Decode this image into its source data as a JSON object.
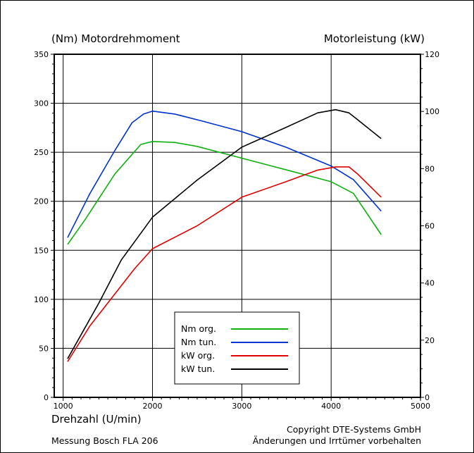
{
  "chart_data": {
    "type": "line",
    "y_left_label": "(Nm)  Motordrehmoment",
    "y_right_label": "Motorleistung  (kW)",
    "x_label": "Drehzahl  (U/min)",
    "x_range": [
      900,
      5000
    ],
    "x_ticks": [
      1000,
      2000,
      3000,
      4000,
      5000
    ],
    "y_left_range": [
      0,
      350
    ],
    "y_left_ticks": [
      0,
      50,
      100,
      150,
      200,
      250,
      300,
      350
    ],
    "y_right_range": [
      0,
      120
    ],
    "y_right_ticks": [
      0,
      20,
      40,
      60,
      80,
      100,
      120
    ],
    "grid": true,
    "legend_placement": "bottom-center",
    "series": [
      {
        "name": "Nm org.",
        "axis": "left",
        "color": "#10b010",
        "points": [
          [
            1050,
            156
          ],
          [
            1250,
            182
          ],
          [
            1580,
            228
          ],
          [
            1870,
            258
          ],
          [
            2000,
            261
          ],
          [
            2250,
            260
          ],
          [
            2500,
            256
          ],
          [
            3000,
            244
          ],
          [
            3500,
            232
          ],
          [
            4000,
            220
          ],
          [
            4250,
            208
          ],
          [
            4560,
            166
          ]
        ]
      },
      {
        "name": "Nm tun.",
        "axis": "left",
        "color": "#0033cc",
        "points": [
          [
            1050,
            163
          ],
          [
            1300,
            208
          ],
          [
            1580,
            252
          ],
          [
            1770,
            280
          ],
          [
            1900,
            289
          ],
          [
            2000,
            292
          ],
          [
            2250,
            289
          ],
          [
            2550,
            282
          ],
          [
            3000,
            271
          ],
          [
            3500,
            255
          ],
          [
            4000,
            236
          ],
          [
            4250,
            222
          ],
          [
            4560,
            190
          ]
        ]
      },
      {
        "name": "kW org.",
        "axis": "right",
        "color": "#e00000",
        "points": [
          [
            1050,
            12.5
          ],
          [
            1300,
            25
          ],
          [
            1600,
            37
          ],
          [
            1800,
            45
          ],
          [
            2000,
            52
          ],
          [
            2500,
            60
          ],
          [
            3000,
            70
          ],
          [
            3500,
            75.5
          ],
          [
            3850,
            79.5
          ],
          [
            4050,
            80.6
          ],
          [
            4200,
            80.6
          ],
          [
            4300,
            78
          ],
          [
            4560,
            70
          ]
        ]
      },
      {
        "name": "kW tun.",
        "axis": "right",
        "color": "#000000",
        "points": [
          [
            1050,
            13.5
          ],
          [
            1400,
            33
          ],
          [
            1650,
            48
          ],
          [
            2000,
            63
          ],
          [
            2500,
            76
          ],
          [
            3000,
            87.5
          ],
          [
            3500,
            94.5
          ],
          [
            3850,
            99.5
          ],
          [
            4050,
            100.6
          ],
          [
            4200,
            99.5
          ],
          [
            4300,
            97
          ],
          [
            4560,
            90.5
          ]
        ]
      }
    ]
  },
  "footer": {
    "copyright": "Copyright  DTE-Systems GmbH",
    "rights": "Änderungen und Irrtümer vorbehalten",
    "measurement": "Messung Bosch FLA 206"
  }
}
